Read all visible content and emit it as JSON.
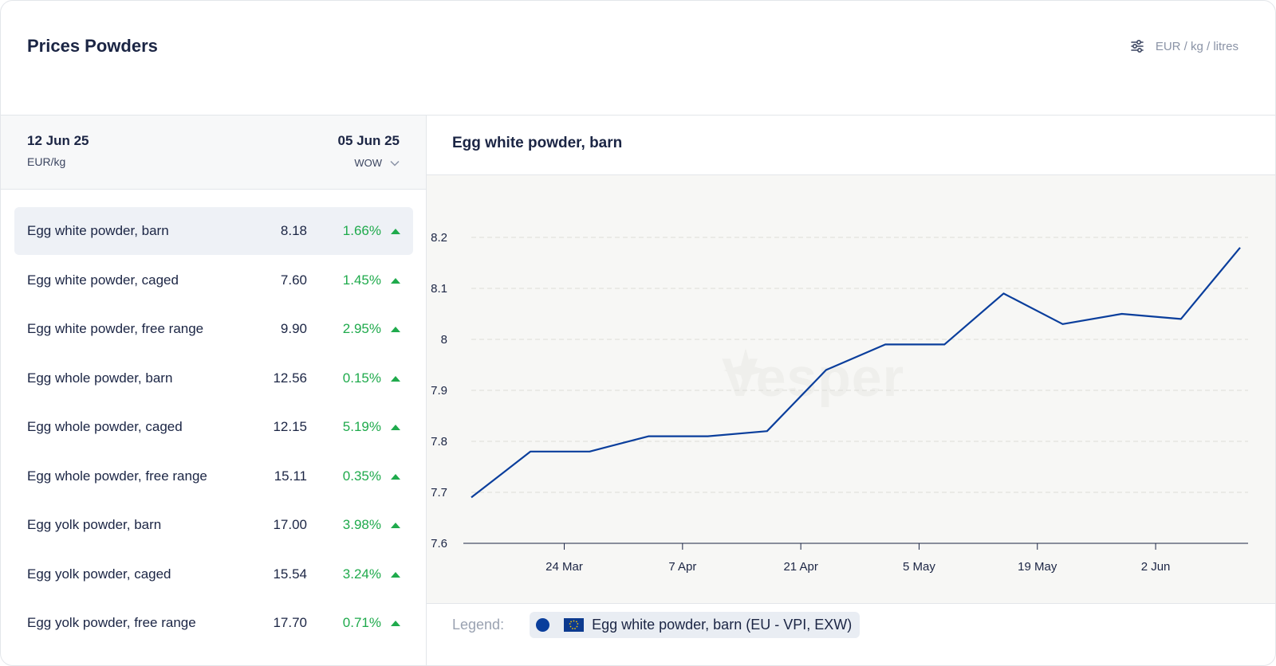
{
  "header": {
    "title": "Prices Powders",
    "units_label": "EUR / kg / litres"
  },
  "table": {
    "current_date": "12 Jun 25",
    "current_unit": "EUR/kg",
    "compare_date": "05 Jun 25",
    "period": "WOW",
    "rows": [
      {
        "name": "Egg white powder, barn",
        "price": "8.18",
        "change": "1.66%",
        "trend": "up",
        "selected": true
      },
      {
        "name": "Egg white powder, caged",
        "price": "7.60",
        "change": "1.45%",
        "trend": "up"
      },
      {
        "name": "Egg white powder, free range",
        "price": "9.90",
        "change": "2.95%",
        "trend": "up"
      },
      {
        "name": "Egg whole powder, barn",
        "price": "12.56",
        "change": "0.15%",
        "trend": "up"
      },
      {
        "name": "Egg whole powder, caged",
        "price": "12.15",
        "change": "5.19%",
        "trend": "up"
      },
      {
        "name": "Egg whole powder, free range",
        "price": "15.11",
        "change": "0.35%",
        "trend": "up"
      },
      {
        "name": "Egg yolk powder, barn",
        "price": "17.00",
        "change": "3.98%",
        "trend": "up"
      },
      {
        "name": "Egg yolk powder, caged",
        "price": "15.54",
        "change": "3.24%",
        "trend": "up"
      },
      {
        "name": "Egg yolk powder, free range",
        "price": "17.70",
        "change": "0.71%",
        "trend": "up"
      }
    ]
  },
  "chart_panel": {
    "title": "Egg white powder, barn",
    "watermark": "Vesper",
    "legend_label": "Legend:",
    "legend_item": "Egg white powder, barn (EU - VPI, EXW)"
  },
  "colors": {
    "line": "#0a3e9c",
    "positive": "#1faa4c"
  },
  "chart_data": {
    "type": "line",
    "title": "Egg white powder, barn",
    "xlabel": "",
    "ylabel": "",
    "ylim": [
      7.6,
      8.2
    ],
    "yticks": [
      "7.6",
      "7.7",
      "7.8",
      "7.9",
      "8",
      "8.1",
      "8.2"
    ],
    "xticks": [
      "24 Mar",
      "7 Apr",
      "21 Apr",
      "5 May",
      "19 May",
      "2 Jun"
    ],
    "x": [
      "2025-03-13",
      "2025-03-20",
      "2025-03-27",
      "2025-04-03",
      "2025-04-10",
      "2025-04-17",
      "2025-04-24",
      "2025-05-01",
      "2025-05-08",
      "2025-05-15",
      "2025-05-22",
      "2025-05-29",
      "2025-06-05",
      "2025-06-12"
    ],
    "series": [
      {
        "name": "Egg white powder, barn (EU - VPI, EXW)",
        "values": [
          7.69,
          7.78,
          7.78,
          7.81,
          7.81,
          7.82,
          7.94,
          7.99,
          7.99,
          8.09,
          8.03,
          8.05,
          8.04,
          8.18
        ]
      }
    ],
    "grid": true,
    "legend": "bottom-left"
  }
}
